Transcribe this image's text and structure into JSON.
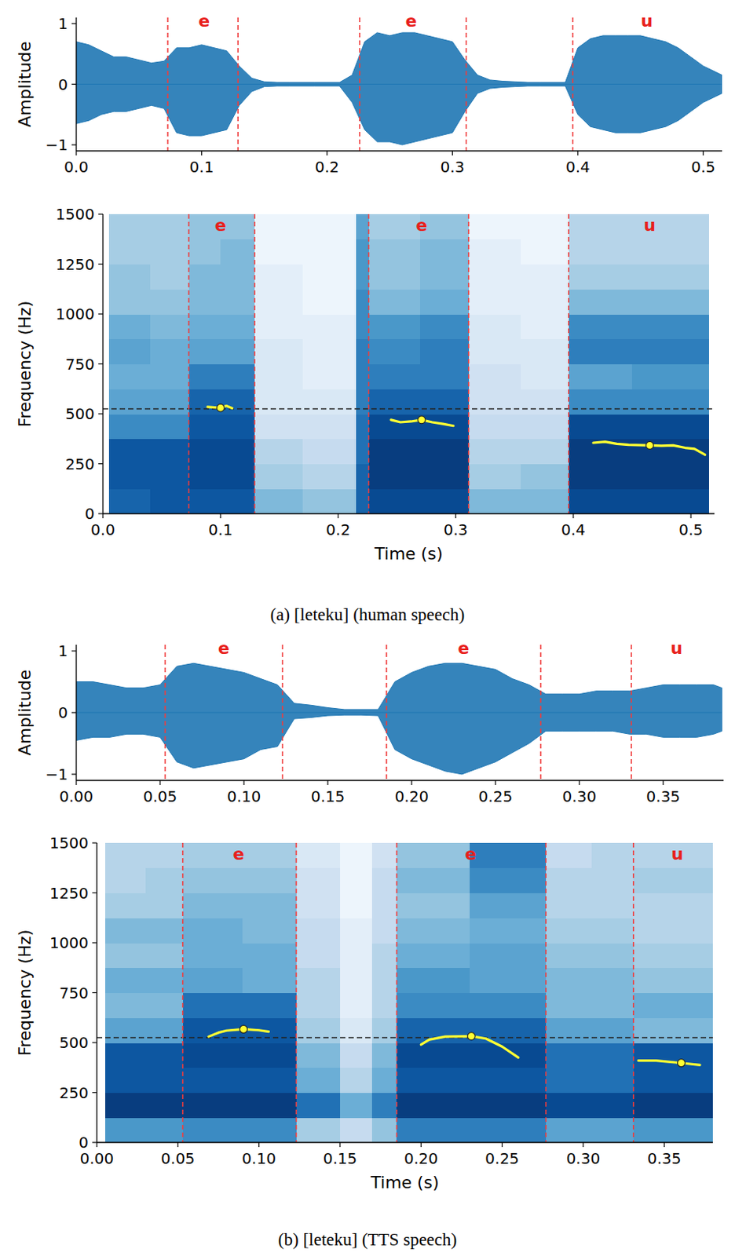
{
  "chart_data": [
    {
      "type": "waveform",
      "ylabel": "Amplitude",
      "color": "#1f77b4",
      "xlim": [
        0,
        0.515
      ],
      "ylim": [
        -1.1,
        1.1
      ],
      "xticks": [
        {
          "value": 0,
          "label": "0.0"
        },
        0.1,
        0.2,
        0.3,
        0.4,
        0.5
      ],
      "yticks": [
        {
          "value": -1,
          "label": "−1"
        },
        0,
        1
      ],
      "x": [
        0,
        0.01,
        0.02,
        0.03,
        0.04,
        0.05,
        0.06,
        0.07,
        0.08,
        0.09,
        0.1,
        0.11,
        0.12,
        0.13,
        0.14,
        0.15,
        0.16,
        0.17,
        0.18,
        0.19,
        0.2,
        0.21,
        0.22,
        0.23,
        0.24,
        0.25,
        0.26,
        0.27,
        0.28,
        0.29,
        0.3,
        0.31,
        0.32,
        0.33,
        0.34,
        0.35,
        0.36,
        0.37,
        0.38,
        0.39,
        0.4,
        0.41,
        0.42,
        0.43,
        0.44,
        0.45,
        0.46,
        0.47,
        0.48,
        0.49,
        0.5,
        0.51,
        0.515
      ],
      "upper": [
        0.7,
        0.65,
        0.55,
        0.45,
        0.45,
        0.4,
        0.35,
        0.38,
        0.6,
        0.6,
        0.65,
        0.6,
        0.55,
        0.3,
        0.1,
        0.04,
        0.03,
        0.03,
        0.03,
        0.03,
        0.03,
        0.03,
        0.15,
        0.7,
        0.85,
        0.8,
        0.85,
        0.85,
        0.8,
        0.75,
        0.7,
        0.4,
        0.15,
        0.07,
        0.05,
        0.04,
        0.03,
        0.03,
        0.03,
        0.03,
        0.6,
        0.75,
        0.8,
        0.8,
        0.8,
        0.8,
        0.75,
        0.7,
        0.6,
        0.45,
        0.3,
        0.2,
        0.15
      ],
      "lower": [
        -0.65,
        -0.6,
        -0.5,
        -0.45,
        -0.45,
        -0.4,
        -0.35,
        -0.4,
        -0.8,
        -0.85,
        -0.85,
        -0.8,
        -0.75,
        -0.35,
        -0.12,
        -0.04,
        -0.03,
        -0.03,
        -0.03,
        -0.03,
        -0.03,
        -0.03,
        -0.3,
        -0.75,
        -0.95,
        -0.95,
        -1.0,
        -0.95,
        -0.9,
        -0.85,
        -0.8,
        -0.45,
        -0.15,
        -0.07,
        -0.05,
        -0.04,
        -0.03,
        -0.03,
        -0.03,
        -0.03,
        -0.5,
        -0.7,
        -0.75,
        -0.8,
        -0.8,
        -0.8,
        -0.75,
        -0.7,
        -0.6,
        -0.45,
        -0.3,
        -0.2,
        -0.15
      ],
      "boundaries": [
        0.073,
        0.129,
        0.226,
        0.311,
        0.396
      ],
      "segment_labels": [
        {
          "x": 0.102,
          "label": "e"
        },
        {
          "x": 0.267,
          "label": "e"
        },
        {
          "x": 0.455,
          "label": "u"
        }
      ]
    },
    {
      "type": "spectrogram",
      "xlabel": "Time (s)",
      "ylabel": "Frequency (Hz)",
      "xlim": [
        0,
        0.52
      ],
      "ylim": [
        0,
        1500
      ],
      "xticks": [
        {
          "value": 0,
          "label": "0.0"
        },
        0.1,
        0.2,
        0.3,
        0.4,
        0.5
      ],
      "yticks": [
        0,
        250,
        500,
        750,
        1000,
        1250,
        1500
      ],
      "x_edges": [
        0.005,
        0.04,
        0.073,
        0.1,
        0.129,
        0.17,
        0.215,
        0.226,
        0.27,
        0.311,
        0.355,
        0.396,
        0.45,
        0.515
      ],
      "y_edges": [
        0,
        125,
        250,
        375,
        500,
        625,
        750,
        875,
        1000,
        1125,
        1250,
        1375,
        1500
      ],
      "color_range": [
        0,
        1
      ],
      "cells": [
        [
          0.8,
          0.85,
          0.85,
          0.85,
          0.45,
          0.4,
          0.8,
          0.9,
          0.9,
          0.45,
          0.45,
          0.9,
          0.9
        ],
        [
          0.85,
          0.85,
          0.9,
          0.9,
          0.35,
          0.3,
          0.8,
          0.95,
          0.95,
          0.35,
          0.4,
          0.95,
          0.95
        ],
        [
          0.85,
          0.85,
          0.9,
          0.9,
          0.3,
          0.25,
          0.75,
          0.95,
          0.95,
          0.3,
          0.3,
          0.95,
          0.95
        ],
        [
          0.65,
          0.65,
          0.85,
          0.85,
          0.2,
          0.2,
          0.75,
          0.9,
          0.9,
          0.25,
          0.25,
          0.9,
          0.9
        ],
        [
          0.55,
          0.55,
          0.8,
          0.8,
          0.15,
          0.15,
          0.7,
          0.8,
          0.8,
          0.2,
          0.2,
          0.65,
          0.65
        ],
        [
          0.5,
          0.5,
          0.7,
          0.7,
          0.15,
          0.1,
          0.7,
          0.7,
          0.7,
          0.2,
          0.15,
          0.55,
          0.6
        ],
        [
          0.55,
          0.5,
          0.55,
          0.55,
          0.15,
          0.1,
          0.7,
          0.65,
          0.7,
          0.15,
          0.15,
          0.7,
          0.7
        ],
        [
          0.5,
          0.45,
          0.5,
          0.5,
          0.1,
          0.1,
          0.65,
          0.6,
          0.65,
          0.15,
          0.1,
          0.65,
          0.65
        ],
        [
          0.4,
          0.4,
          0.45,
          0.45,
          0.1,
          0.05,
          0.65,
          0.45,
          0.5,
          0.1,
          0.1,
          0.45,
          0.45
        ],
        [
          0.4,
          0.35,
          0.45,
          0.45,
          0.1,
          0.05,
          0.6,
          0.4,
          0.45,
          0.1,
          0.1,
          0.35,
          0.35
        ],
        [
          0.35,
          0.35,
          0.4,
          0.45,
          0.05,
          0.05,
          0.6,
          0.4,
          0.45,
          0.1,
          0.05,
          0.3,
          0.3
        ],
        [
          0.35,
          0.35,
          0.4,
          0.4,
          0.05,
          0.05,
          0.55,
          0.35,
          0.4,
          0.05,
          0.05,
          0.3,
          0.3
        ]
      ],
      "reference_line": 525,
      "boundaries": [
        0.073,
        0.129,
        0.226,
        0.311,
        0.396
      ],
      "segment_labels": [
        {
          "x": 0.1,
          "label": "e"
        },
        {
          "x": 0.271,
          "label": "e"
        },
        {
          "x": 0.465,
          "label": "u"
        }
      ],
      "tracks": [
        {
          "x": [
            0.089,
            0.095,
            0.1,
            0.105,
            0.11
          ],
          "values": [
            535,
            532,
            530,
            540,
            528
          ]
        },
        {
          "x": [
            0.245,
            0.253,
            0.262,
            0.271,
            0.28,
            0.289,
            0.298
          ],
          "values": [
            470,
            458,
            462,
            470,
            458,
            450,
            440
          ]
        },
        {
          "x": [
            0.417,
            0.427,
            0.437,
            0.447,
            0.465,
            0.475,
            0.485,
            0.495,
            0.503,
            0.512
          ],
          "values": [
            355,
            360,
            350,
            345,
            342,
            340,
            342,
            330,
            325,
            295
          ]
        }
      ],
      "points": [
        {
          "x": 0.1,
          "value": 530
        },
        {
          "x": 0.271,
          "value": 470
        },
        {
          "x": 0.465,
          "value": 342
        }
      ],
      "caption": "(a) [leteku] (human speech)"
    },
    {
      "type": "waveform",
      "ylabel": "Amplitude",
      "color": "#1f77b4",
      "xlim": [
        0,
        0.386
      ],
      "ylim": [
        -1.1,
        1.1
      ],
      "xticks": [
        {
          "value": 0,
          "label": "0.00"
        },
        0.05,
        {
          "value": 0.1,
          "label": "0.10"
        },
        0.15,
        {
          "value": 0.2,
          "label": "0.20"
        },
        0.25,
        {
          "value": 0.3,
          "label": "0.30"
        },
        0.35
      ],
      "yticks": [
        {
          "value": -1,
          "label": "−1"
        },
        0,
        1
      ],
      "x": [
        0,
        0.01,
        0.02,
        0.03,
        0.04,
        0.05,
        0.06,
        0.07,
        0.08,
        0.09,
        0.1,
        0.11,
        0.12,
        0.13,
        0.14,
        0.15,
        0.16,
        0.17,
        0.18,
        0.19,
        0.2,
        0.21,
        0.22,
        0.23,
        0.24,
        0.25,
        0.26,
        0.27,
        0.28,
        0.29,
        0.3,
        0.31,
        0.32,
        0.33,
        0.34,
        0.35,
        0.36,
        0.37,
        0.38,
        0.385
      ],
      "upper": [
        0.5,
        0.5,
        0.45,
        0.4,
        0.4,
        0.45,
        0.75,
        0.8,
        0.75,
        0.7,
        0.65,
        0.55,
        0.45,
        0.15,
        0.12,
        0.08,
        0.05,
        0.05,
        0.05,
        0.5,
        0.65,
        0.75,
        0.8,
        0.8,
        0.75,
        0.7,
        0.55,
        0.45,
        0.3,
        0.3,
        0.3,
        0.35,
        0.35,
        0.35,
        0.4,
        0.45,
        0.45,
        0.45,
        0.45,
        0.4
      ],
      "lower": [
        -0.45,
        -0.4,
        -0.4,
        -0.35,
        -0.35,
        -0.4,
        -0.8,
        -0.9,
        -0.85,
        -0.8,
        -0.75,
        -0.6,
        -0.55,
        -0.1,
        -0.08,
        -0.05,
        -0.04,
        -0.04,
        -0.05,
        -0.6,
        -0.75,
        -0.85,
        -0.95,
        -1.0,
        -0.9,
        -0.8,
        -0.65,
        -0.5,
        -0.3,
        -0.3,
        -0.3,
        -0.3,
        -0.3,
        -0.35,
        -0.35,
        -0.4,
        -0.4,
        -0.4,
        -0.35,
        -0.3
      ],
      "boundaries": [
        0.053,
        0.123,
        0.185,
        0.277,
        0.331
      ],
      "segment_labels": [
        {
          "x": 0.088,
          "label": "e"
        },
        {
          "x": 0.231,
          "label": "e"
        },
        {
          "x": 0.358,
          "label": "u"
        }
      ]
    },
    {
      "type": "spectrogram",
      "xlabel": "Time (s)",
      "ylabel": "Frequency (Hz)",
      "xlim": [
        0,
        0.38
      ],
      "ylim": [
        0,
        1500
      ],
      "xticks": [
        {
          "value": 0,
          "label": "0.00"
        },
        0.05,
        {
          "value": 0.1,
          "label": "0.10"
        },
        0.15,
        {
          "value": 0.2,
          "label": "0.20"
        },
        0.25,
        {
          "value": 0.3,
          "label": "0.30"
        },
        0.35
      ],
      "yticks": [
        0,
        250,
        500,
        750,
        1000,
        1250,
        1500
      ],
      "x_edges": [
        0.005,
        0.03,
        0.053,
        0.09,
        0.123,
        0.15,
        0.17,
        0.185,
        0.23,
        0.277,
        0.305,
        0.331,
        0.38
      ],
      "y_edges": [
        0,
        125,
        250,
        375,
        500,
        625,
        750,
        875,
        1000,
        1125,
        1250,
        1375,
        1500
      ],
      "color_range": [
        0,
        1
      ],
      "cells": [
        [
          0.6,
          0.6,
          0.65,
          0.65,
          0.35,
          0.25,
          0.4,
          0.7,
          0.7,
          0.55,
          0.55,
          0.6
        ],
        [
          0.95,
          0.95,
          0.95,
          0.95,
          0.75,
          0.5,
          0.7,
          0.95,
          0.95,
          0.9,
          0.9,
          0.95
        ],
        [
          0.85,
          0.85,
          0.85,
          0.85,
          0.5,
          0.3,
          0.5,
          0.85,
          0.85,
          0.75,
          0.75,
          0.85
        ],
        [
          0.85,
          0.85,
          0.9,
          0.9,
          0.45,
          0.25,
          0.45,
          0.9,
          0.9,
          0.75,
          0.75,
          0.85
        ],
        [
          0.55,
          0.55,
          0.85,
          0.85,
          0.35,
          0.15,
          0.35,
          0.8,
          0.8,
          0.55,
          0.55,
          0.45
        ],
        [
          0.45,
          0.45,
          0.75,
          0.75,
          0.3,
          0.1,
          0.3,
          0.65,
          0.65,
          0.45,
          0.45,
          0.5
        ],
        [
          0.5,
          0.5,
          0.55,
          0.5,
          0.3,
          0.1,
          0.3,
          0.6,
          0.55,
          0.45,
          0.45,
          0.4
        ],
        [
          0.4,
          0.4,
          0.5,
          0.5,
          0.25,
          0.1,
          0.3,
          0.5,
          0.55,
          0.4,
          0.4,
          0.35
        ],
        [
          0.45,
          0.45,
          0.5,
          0.45,
          0.25,
          0.1,
          0.25,
          0.45,
          0.5,
          0.35,
          0.35,
          0.3
        ],
        [
          0.35,
          0.35,
          0.45,
          0.45,
          0.2,
          0.05,
          0.25,
          0.4,
          0.55,
          0.3,
          0.3,
          0.3
        ],
        [
          0.3,
          0.35,
          0.4,
          0.4,
          0.2,
          0.05,
          0.25,
          0.45,
          0.65,
          0.3,
          0.3,
          0.35
        ],
        [
          0.3,
          0.3,
          0.35,
          0.35,
          0.15,
          0.05,
          0.2,
          0.4,
          0.7,
          0.25,
          0.3,
          0.3
        ]
      ],
      "reference_line": 525,
      "boundaries": [
        0.053,
        0.123,
        0.185,
        0.277,
        0.331
      ],
      "segment_labels": [
        {
          "x": 0.0875,
          "label": "e"
        },
        {
          "x": 0.2305,
          "label": "e"
        },
        {
          "x": 0.358,
          "label": "u"
        }
      ],
      "tracks": [
        {
          "x": [
            0.069,
            0.075,
            0.08,
            0.0905,
            0.1,
            0.106
          ],
          "values": [
            530,
            550,
            560,
            567,
            562,
            555
          ]
        },
        {
          "x": [
            0.2,
            0.205,
            0.215,
            0.231,
            0.24,
            0.25,
            0.26
          ],
          "values": [
            490,
            515,
            530,
            532,
            520,
            480,
            425
          ]
        },
        {
          "x": [
            0.334,
            0.345,
            0.3605,
            0.372
          ],
          "values": [
            410,
            410,
            398,
            388
          ]
        }
      ],
      "points": [
        {
          "x": 0.0905,
          "value": 567
        },
        {
          "x": 0.231,
          "value": 532
        },
        {
          "x": 0.3605,
          "value": 398
        }
      ],
      "caption": "(b) [leteku] (TTS speech)"
    }
  ]
}
